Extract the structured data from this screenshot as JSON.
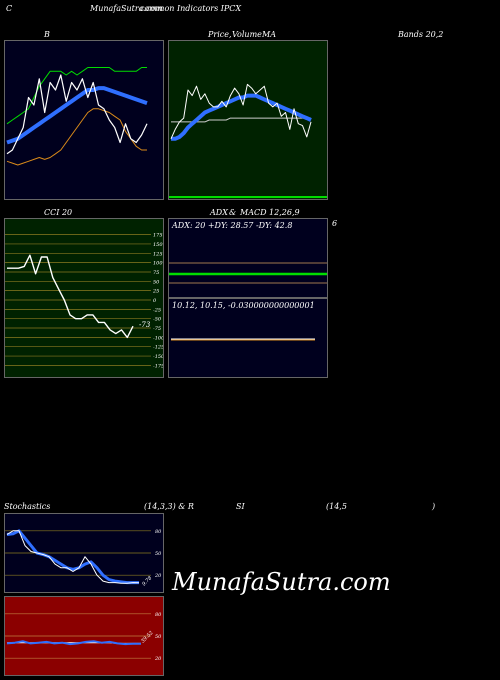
{
  "header": {
    "left_letter": "C",
    "title": "MunafaSutra.com",
    "subtitle": "common Indicators IPCX"
  },
  "labels": {
    "bb_title": "B",
    "price_title": "Price,",
    "volume_title": "Volume",
    "ma_title": "MA",
    "bands_title": "Bands 20,2",
    "cci_title": "CCI 20",
    "adx_title": "ADX",
    "amp": "&",
    "macd_title": "MACD 12,26,9",
    "macd_side": "6",
    "adx_values": "ADX: 20  +DY: 28.57  -DY: 42.8",
    "macd_values": "10.12,  10.15,  -0.030000000000001",
    "cci_current": "-73",
    "stoch_title": "Stochastics",
    "stoch_params": "(14,3,3) & R",
    "rsi_title": "SI",
    "rsi_params": "(14,5",
    "rsi_close": ")",
    "stoch_current": "9.78",
    "rsi_current": "39.52"
  },
  "watermark": "MunafaSutra.com",
  "colors": {
    "bb_bg": "#00001e",
    "price_bg": "#002200",
    "cci_bg": "#002200",
    "adx_bg": "#00001e",
    "stoch_bg": "#00001e",
    "rsi_bg": "#8b0000",
    "blue": "#2f6fff",
    "green": "#00dd00",
    "orange": "#d98a1a"
  },
  "chart_data": [
    {
      "type": "line",
      "title": "Bollinger Bands 20,2",
      "series": [
        {
          "key": "close",
          "values": [
            71,
            72,
            75,
            78,
            86,
            84,
            91,
            82,
            90,
            88,
            92,
            85,
            90,
            88,
            91,
            86,
            90,
            84,
            83,
            80,
            78,
            74,
            79,
            75,
            74,
            76,
            79
          ]
        },
        {
          "key": "upper",
          "values": [
            79,
            80,
            81,
            82,
            83,
            86,
            89,
            91,
            93,
            93,
            93,
            92,
            93,
            92,
            93,
            94,
            94,
            94,
            94,
            94,
            93,
            93,
            93,
            93,
            93,
            94,
            94
          ]
        },
        {
          "key": "middle",
          "values": [
            74,
            74.5,
            75,
            76,
            77,
            78,
            79,
            80,
            81,
            82,
            83,
            84,
            85,
            86,
            87,
            88,
            88,
            88.5,
            88.5,
            88,
            87.5,
            87,
            86.5,
            86,
            85.5,
            85,
            84.5
          ]
        },
        {
          "key": "lower",
          "values": [
            69,
            68.5,
            68,
            68.5,
            69,
            69.5,
            70,
            69.5,
            70,
            71,
            72,
            74,
            76,
            78,
            80,
            82,
            83,
            83,
            82.5,
            82,
            81,
            80,
            77,
            75,
            73,
            72,
            72
          ]
        }
      ],
      "ylim": [
        60,
        100
      ]
    },
    {
      "type": "line",
      "title": "Price, Volume, MA",
      "series": [
        {
          "key": "price",
          "values": [
            11.0,
            11.5,
            11.9,
            12.1,
            13.6,
            13.3,
            13.8,
            13.1,
            13.4,
            12.9,
            12.7,
            12.7,
            13.0,
            12.7,
            13.3,
            13.7,
            13.4,
            12.8,
            13.9,
            13.7,
            13.4,
            13.6,
            13.8,
            12.9,
            12.7,
            12.9,
            12.2,
            12.4,
            11.5,
            12.6,
            11.8,
            11.7,
            11.1,
            11.9
          ]
        },
        {
          "key": "ma_fast",
          "values": [
            11.0,
            11.0,
            11.1,
            11.3,
            11.6,
            11.8,
            12.0,
            12.2,
            12.4,
            12.5,
            12.6,
            12.7,
            12.8,
            12.9,
            13.0,
            13.1,
            13.2,
            13.2,
            13.3,
            13.3,
            13.3,
            13.2,
            13.1,
            13.0,
            12.9,
            12.8,
            12.7,
            12.6,
            12.5,
            12.4,
            12.3,
            12.2,
            12.1,
            12.0
          ]
        },
        {
          "key": "ma_slow",
          "values": [
            11.9,
            11.9,
            11.9,
            11.9,
            11.9,
            11.9,
            11.9,
            11.9,
            11.9,
            12.0,
            12.0,
            12.0,
            12.0,
            12.0,
            12.1,
            12.1,
            12.1,
            12.1,
            12.1,
            12.1,
            12.1,
            12.1,
            12.1,
            12.1,
            12.1,
            12.1,
            12.1,
            12.1,
            12.1,
            12.1,
            12.1,
            12.1,
            12.1,
            12.1
          ]
        }
      ],
      "ylim": [
        8,
        16
      ]
    },
    {
      "type": "line",
      "title": "CCI 20",
      "ticks": [
        175,
        150,
        125,
        100,
        75,
        50,
        25,
        0,
        -25,
        -50,
        -75,
        -100,
        -125,
        -150,
        -175
      ],
      "series": [
        {
          "key": "cci",
          "values": [
            85,
            85,
            85,
            90,
            120,
            70,
            115,
            115,
            60,
            30,
            0,
            -40,
            -50,
            -50,
            -40,
            -40,
            -60,
            -60,
            -80,
            -90,
            -80,
            -100,
            -70
          ]
        }
      ],
      "ylim": [
        -190,
        190
      ]
    },
    {
      "type": "line",
      "title": "ADX & MACD 12,26,9",
      "adx": 20,
      "plus_dy": 28.57,
      "minus_dy": 42.8,
      "macd": 10.12,
      "signal": 10.15,
      "histogram": -0.030000000000001
    },
    {
      "type": "line",
      "title": "Stochastics (14,3,3)",
      "ticks": [
        80,
        50,
        20
      ],
      "series": [
        {
          "key": "k",
          "values": [
            75,
            80,
            80,
            60,
            52,
            50,
            48,
            45,
            35,
            30,
            30,
            25,
            30,
            45,
            35,
            20,
            12,
            10,
            10,
            9,
            9,
            10,
            9.78
          ]
        },
        {
          "key": "d",
          "values": [
            75,
            76,
            80,
            70,
            60,
            50,
            48,
            45,
            40,
            35,
            30,
            28,
            30,
            35,
            38,
            30,
            20,
            14,
            12,
            11,
            10,
            10,
            10
          ]
        }
      ],
      "ylim": [
        0,
        100
      ]
    },
    {
      "type": "line",
      "title": "RSI (14,5)",
      "ticks": [
        80,
        50,
        20
      ],
      "series": [
        {
          "key": "rsi",
          "values": [
            40,
            41,
            43,
            40,
            41,
            42,
            40,
            41,
            39,
            40,
            42,
            43,
            41,
            42,
            40,
            39,
            39.5,
            39.52
          ]
        },
        {
          "key": "rsi_ma",
          "values": [
            41,
            41,
            41,
            41,
            41,
            41,
            41,
            41,
            41,
            41,
            41,
            41,
            41,
            41,
            40,
            40,
            40,
            40
          ]
        }
      ],
      "ylim": [
        0,
        100
      ]
    }
  ]
}
